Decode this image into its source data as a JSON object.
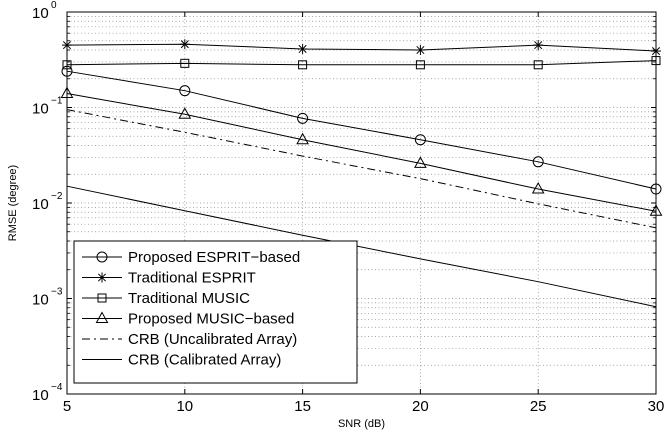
{
  "chart_data": {
    "type": "line",
    "xlabel": "SNR (dB)",
    "ylabel": "RMSE (degree)",
    "x_scale": "linear",
    "y_scale": "log",
    "xlim": [
      5,
      30
    ],
    "ylim": [
      0.0001,
      1
    ],
    "grid": true,
    "legend_position": "bottom-left",
    "x_ticks": [
      5,
      10,
      15,
      20,
      25,
      30
    ],
    "y_ticks": [
      {
        "base": "10",
        "exp": "0",
        "value": 1
      },
      {
        "base": "10",
        "exp": "−1",
        "value": 0.1
      },
      {
        "base": "10",
        "exp": "−2",
        "value": 0.01
      },
      {
        "base": "10",
        "exp": "−3",
        "value": 0.001
      },
      {
        "base": "10",
        "exp": "−4",
        "value": 0.0001
      }
    ],
    "x": [
      5,
      10,
      15,
      20,
      25,
      30
    ],
    "series": [
      {
        "name": "Proposed ESPRIT−based",
        "marker": "circle",
        "dash": "solid",
        "values": [
          0.24,
          0.15,
          0.077,
          0.046,
          0.027,
          0.014
        ]
      },
      {
        "name": "Traditional ESPRIT",
        "marker": "star",
        "dash": "solid",
        "values": [
          0.45,
          0.46,
          0.41,
          0.4,
          0.45,
          0.39
        ]
      },
      {
        "name": "Traditional MUSIC",
        "marker": "square",
        "dash": "solid",
        "values": [
          0.28,
          0.29,
          0.28,
          0.28,
          0.28,
          0.31
        ]
      },
      {
        "name": "Proposed MUSIC−based",
        "marker": "triangle",
        "dash": "solid",
        "values": [
          0.14,
          0.085,
          0.046,
          0.026,
          0.014,
          0.0082
        ]
      },
      {
        "name": "CRB (Uncalibrated Array)",
        "marker": "none",
        "dash": "dashdot",
        "values": [
          0.095,
          0.055,
          0.031,
          0.018,
          0.0098,
          0.0055
        ]
      },
      {
        "name": "CRB (Calibrated Array)",
        "marker": "none",
        "dash": "solid",
        "values": [
          0.015,
          0.0083,
          0.0046,
          0.0026,
          0.0015,
          0.00082
        ]
      }
    ]
  },
  "colors": {
    "line": "#000000",
    "grid": "#8a8a8a",
    "background": "#ffffff"
  }
}
